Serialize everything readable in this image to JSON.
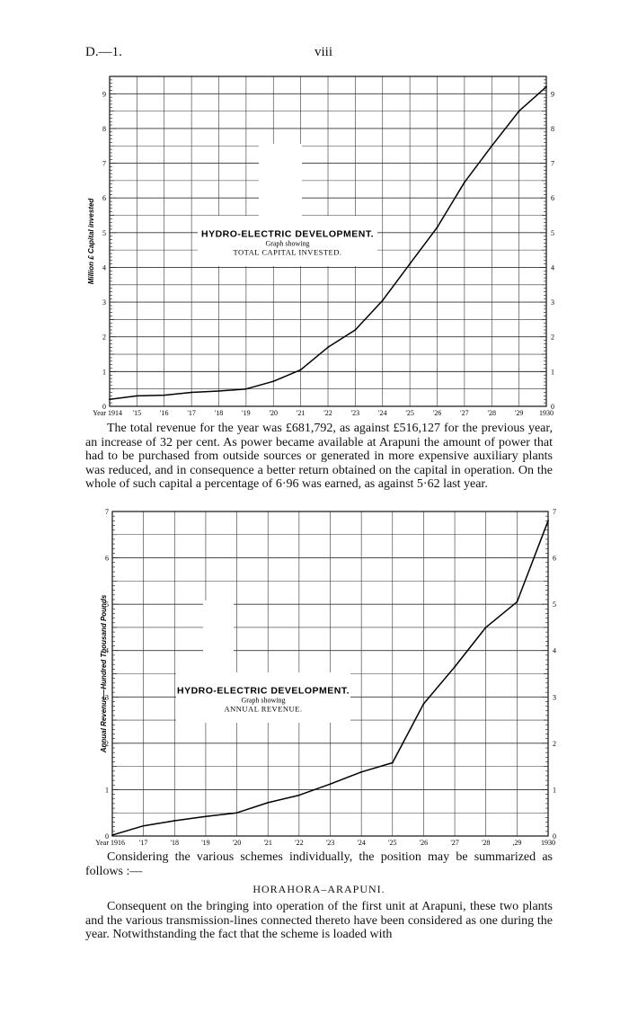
{
  "page": {
    "doc_code": "D.—1.",
    "page_number": "viii"
  },
  "paragraphs": {
    "p1": "The total revenue for the year was £681,792, as against £516,127 for the previous year, an increase of 32 per cent. As power became available at Arapuni the amount of power that had to be purchased from outside sources or generated in more expensive auxiliary plants was reduced, and in consequence a better return obtained on the capital in operation. On the whole of such capital a percentage of 6·96 was earned, as against 5·62 last year.",
    "p2": "Considering the various schemes individually, the position may be summarized as follows :—",
    "section_heading": "HORAHORA–ARAPUNI.",
    "p3": "Consequent on the bringing into operation of the first unit at Arapuni, these two plants and the various transmission-lines connected thereto have been considered as one during the year. Notwithstanding the fact that the scheme is loaded with"
  },
  "chart_data": [
    {
      "type": "line",
      "title": "HYDRO-ELECTRIC DEVELOPMENT.",
      "subtitle": "Graph showing",
      "subtitle2": "TOTAL CAPITAL INVESTED.",
      "ylabel": "Million £ Capital invested",
      "xlabel": "",
      "x_tick_labels": [
        "Year 1914",
        "'15",
        "'16",
        "'17",
        "'18",
        "'19",
        "'20",
        "'21",
        "'22",
        "'23",
        "'24",
        "'25",
        "'26",
        "'27",
        "'28",
        "'29",
        "1930"
      ],
      "y_tick_labels": [
        "0",
        "1",
        "2",
        "3",
        "4",
        "5",
        "6",
        "7",
        "8",
        "9"
      ],
      "xlim": [
        1914,
        1930
      ],
      "ylim": [
        0,
        9.5
      ],
      "grid": true,
      "series": [
        {
          "x": [
            1914,
            1915,
            1916,
            1917,
            1918,
            1919,
            1920,
            1921,
            1922,
            1923,
            1924,
            1925,
            1926,
            1927,
            1928,
            1929,
            1930
          ],
          "values": [
            0.2,
            0.3,
            0.32,
            0.4,
            0.44,
            0.5,
            0.72,
            1.05,
            1.7,
            2.2,
            3.05,
            4.1,
            5.15,
            6.45,
            7.5,
            8.5,
            9.2
          ]
        }
      ]
    },
    {
      "type": "line",
      "title": "HYDRO-ELECTRIC DEVELOPMENT.",
      "subtitle": "Graph showing",
      "subtitle2": "ANNUAL REVENUE.",
      "ylabel": "Annual Revenue—Hundred Thousand Pounds",
      "xlabel": "",
      "x_tick_labels": [
        "Year 1916",
        "'17",
        "'18",
        "'19",
        "'20",
        "'21",
        "'22",
        "'23",
        "'24",
        "'25",
        "'26",
        "'27",
        "'28",
        ",29",
        "1930"
      ],
      "y_tick_labels": [
        "0",
        "1",
        "2",
        "3",
        "4",
        "5",
        "6",
        "7"
      ],
      "xlim": [
        1916,
        1930
      ],
      "ylim": [
        0,
        7
      ],
      "grid": true,
      "series": [
        {
          "x": [
            1916,
            1917,
            1918,
            1919,
            1920,
            1921,
            1922,
            1923,
            1924,
            1925,
            1926,
            1927,
            1928,
            1929,
            1930
          ],
          "values": [
            0.02,
            0.22,
            0.33,
            0.42,
            0.5,
            0.72,
            0.88,
            1.12,
            1.38,
            1.58,
            2.85,
            3.65,
            4.5,
            5.05,
            6.8
          ]
        }
      ]
    }
  ]
}
